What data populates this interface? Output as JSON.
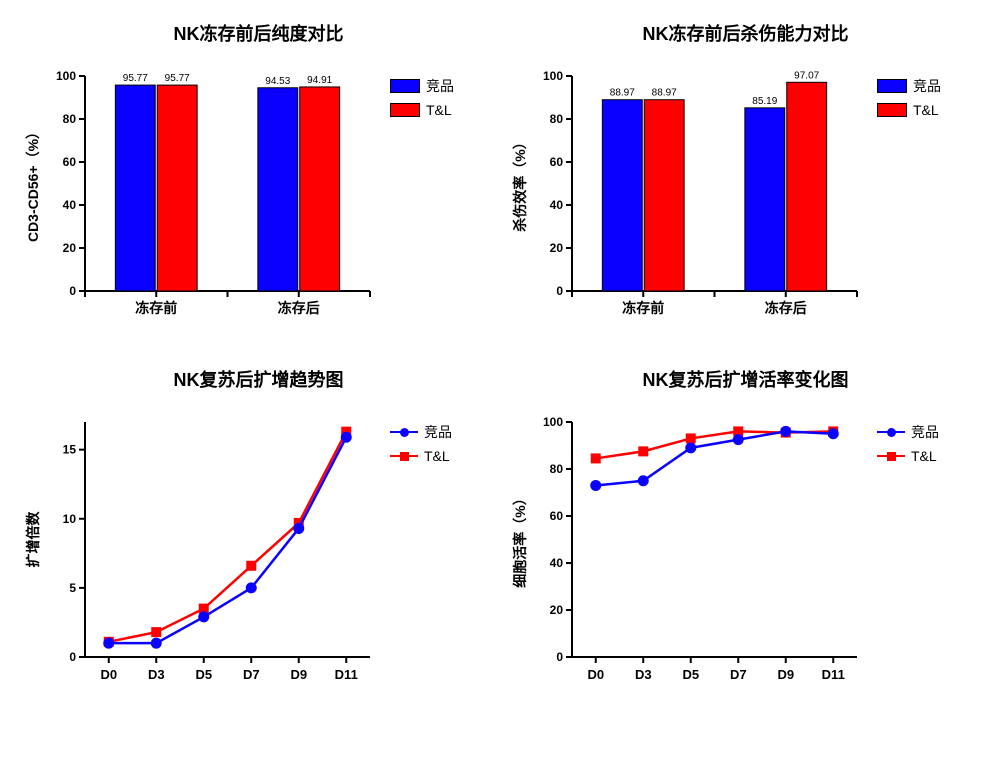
{
  "colors": {
    "series1": "#0a00ff",
    "series2": "#ff0000",
    "axis": "#000000",
    "bg": "#ffffff",
    "tick": "#000000"
  },
  "legend": {
    "s1": "竞品",
    "s2": "T&L"
  },
  "chart1": {
    "type": "bar",
    "title": "NK冻存前后纯度对比",
    "ylabel": "CD3-CD56+（%）",
    "ylim": [
      0,
      100
    ],
    "ytick_step": 20,
    "categories": [
      "冻存前",
      "冻存后"
    ],
    "series1": [
      95.77,
      94.53
    ],
    "series2": [
      95.77,
      94.91
    ],
    "labels1": [
      "95.77",
      "94.53"
    ],
    "labels2": [
      "95.77",
      "94.91"
    ]
  },
  "chart2": {
    "type": "bar",
    "title": "NK冻存前后杀伤能力对比",
    "ylabel": "杀伤效率（%）",
    "ylim": [
      0,
      100
    ],
    "ytick_step": 20,
    "categories": [
      "冻存前",
      "冻存后"
    ],
    "series1": [
      88.97,
      85.19
    ],
    "series2": [
      88.97,
      97.07
    ],
    "labels1": [
      "88.97",
      "85.19"
    ],
    "labels2": [
      "88.97",
      "97.07"
    ]
  },
  "chart3": {
    "type": "line",
    "title": "NK复苏后扩增趋势图",
    "ylabel": "扩增倍数",
    "ylim": [
      0,
      17
    ],
    "yticks": [
      0,
      5,
      10,
      15
    ],
    "x_categories": [
      "D0",
      "D3",
      "D5",
      "D7",
      "D9",
      "D11"
    ],
    "series1": [
      1.0,
      1.0,
      2.9,
      5.0,
      9.3,
      15.9
    ],
    "series2": [
      1.1,
      1.8,
      3.5,
      6.6,
      9.7,
      16.3
    ],
    "marker1": "circle",
    "marker2": "square"
  },
  "chart4": {
    "type": "line",
    "title": "NK复苏后扩增活率变化图",
    "ylabel": "细胞活率（%）",
    "ylim": [
      0,
      100
    ],
    "yticks": [
      0,
      20,
      40,
      60,
      80,
      100
    ],
    "x_categories": [
      "D0",
      "D3",
      "D5",
      "D7",
      "D9",
      "D11"
    ],
    "series1": [
      73,
      75,
      89,
      92.5,
      96,
      95
    ],
    "series2": [
      84.5,
      87.5,
      93,
      96,
      95.5,
      96
    ],
    "marker1": "circle",
    "marker2": "square"
  }
}
